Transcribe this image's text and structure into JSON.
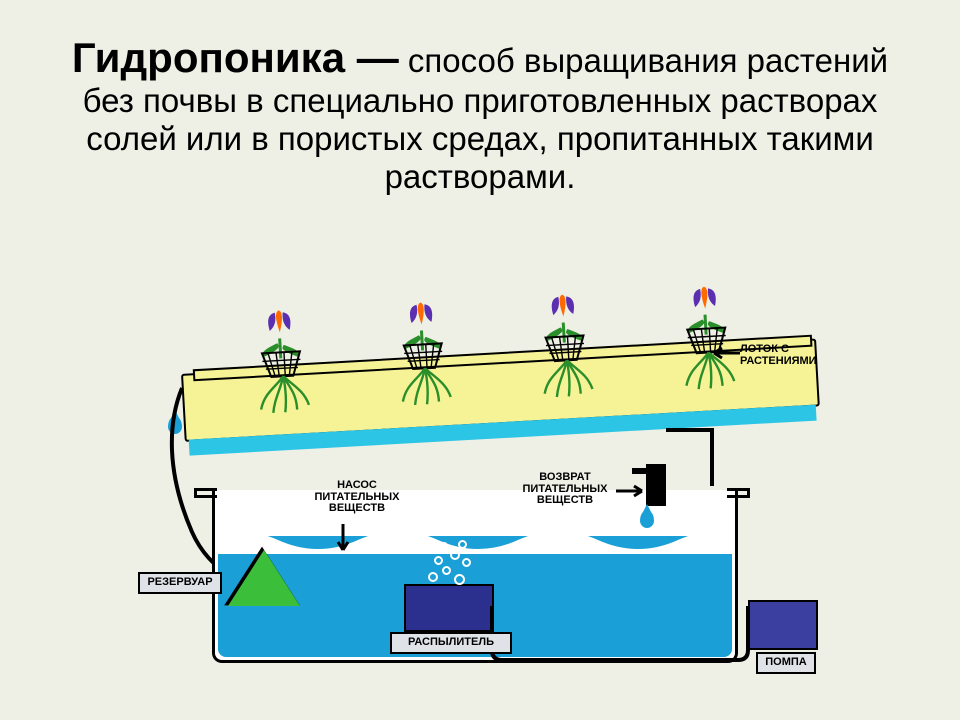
{
  "title_bold": "Гидропоника —",
  "title_rest": " способ выращивания растений без почвы в специально приготовленных растворах солей или в пористых средах, пропитанных такими растворами.",
  "title_fontsize_bold": 42,
  "title_fontsize_rest": 33,
  "labels": {
    "tray": "ЛОТОК С РАСТЕНИЯМИ",
    "pump_nutrients": "НАСОС\nПИТАТЕЛЬНЫХ\nВЕЩЕСТВ",
    "return": "ВОЗВРАТ\nПИТАТЕЛЬНЫХ\nВЕЩЕСТВ",
    "reservoir": "РЕЗЕРВУАР",
    "sprayer": "РАСПЫЛИТЕЛЬ",
    "pump": "ПОМПА"
  },
  "label_fontsize": 11,
  "colors": {
    "background": "#eef0e6",
    "tray_fill": "#f6f296",
    "water": "#1a9fd6",
    "tray_water": "#2cc5e6",
    "pump_tri": "#3bbf3b",
    "sprayer": "#2b2f8e",
    "pumpbox": "#3a3fa0",
    "stem": "#2a8f2a",
    "flower_inner": "#ff6a00",
    "flower_outer": "#5b2fb0",
    "outline": "#000000",
    "reservoir_label_bg": "#dfe3e8"
  },
  "diagram": {
    "type": "infographic",
    "plants": 4,
    "plant_x": [
      68,
      210,
      352,
      494
    ],
    "bubbles": [
      {
        "x": 4,
        "y": 36,
        "d": 6
      },
      {
        "x": 18,
        "y": 30,
        "d": 5
      },
      {
        "x": 30,
        "y": 38,
        "d": 7
      },
      {
        "x": 10,
        "y": 20,
        "d": 5
      },
      {
        "x": 26,
        "y": 14,
        "d": 6
      },
      {
        "x": 38,
        "y": 22,
        "d": 5
      },
      {
        "x": 16,
        "y": 6,
        "d": 4
      },
      {
        "x": 34,
        "y": 4,
        "d": 5
      }
    ]
  }
}
